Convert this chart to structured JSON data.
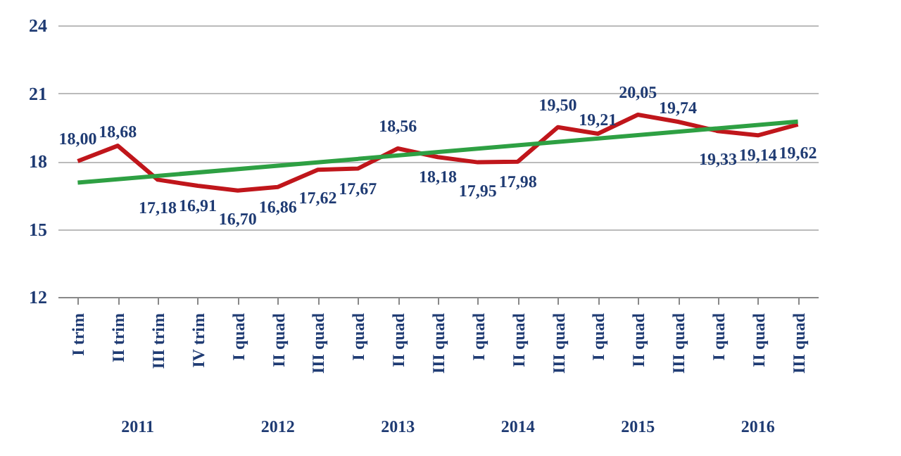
{
  "chart_data": {
    "type": "line",
    "categories": [
      "I trim",
      "II trim",
      "III trim",
      "IV trim",
      "I quad",
      "II quad",
      "III quad",
      "I quad",
      "II quad",
      "III quad",
      "I quad",
      "II quad",
      "III quad",
      "I quad",
      "II quad",
      "III quad",
      "I quad",
      "II quad",
      "III quad"
    ],
    "annotations": [
      "2011",
      "2012",
      "2013",
      "2014",
      "2015",
      "2016"
    ],
    "series": [
      {
        "color": "#c0161b",
        "values": [
          18.0,
          18.68,
          17.18,
          16.91,
          16.7,
          16.86,
          17.62,
          17.67,
          18.56,
          18.18,
          17.95,
          17.98,
          19.5,
          19.21,
          20.05,
          19.74,
          19.33,
          19.14,
          19.62
        ],
        "value_labels": [
          "18,00",
          "18,68",
          "17,18",
          "16,91",
          "16,70",
          "16,86",
          "17,62",
          "17,67",
          "18,56",
          "18,18",
          "17,95",
          "17,98",
          "19,50",
          "19,21",
          "20,05",
          "19,74",
          "19,33",
          "19,14",
          "19,62"
        ]
      },
      {
        "type": "line",
        "color": "#2ea043",
        "values": [
          17.05,
          null,
          null,
          null,
          null,
          null,
          null,
          null,
          null,
          null,
          null,
          null,
          null,
          null,
          null,
          null,
          null,
          null,
          19.75
        ]
      }
    ],
    "ylim": [
      12,
      24
    ],
    "yticks": [
      12,
      15,
      18,
      21,
      24
    ],
    "grid": "y",
    "marker": "none",
    "line_style": "solid"
  }
}
